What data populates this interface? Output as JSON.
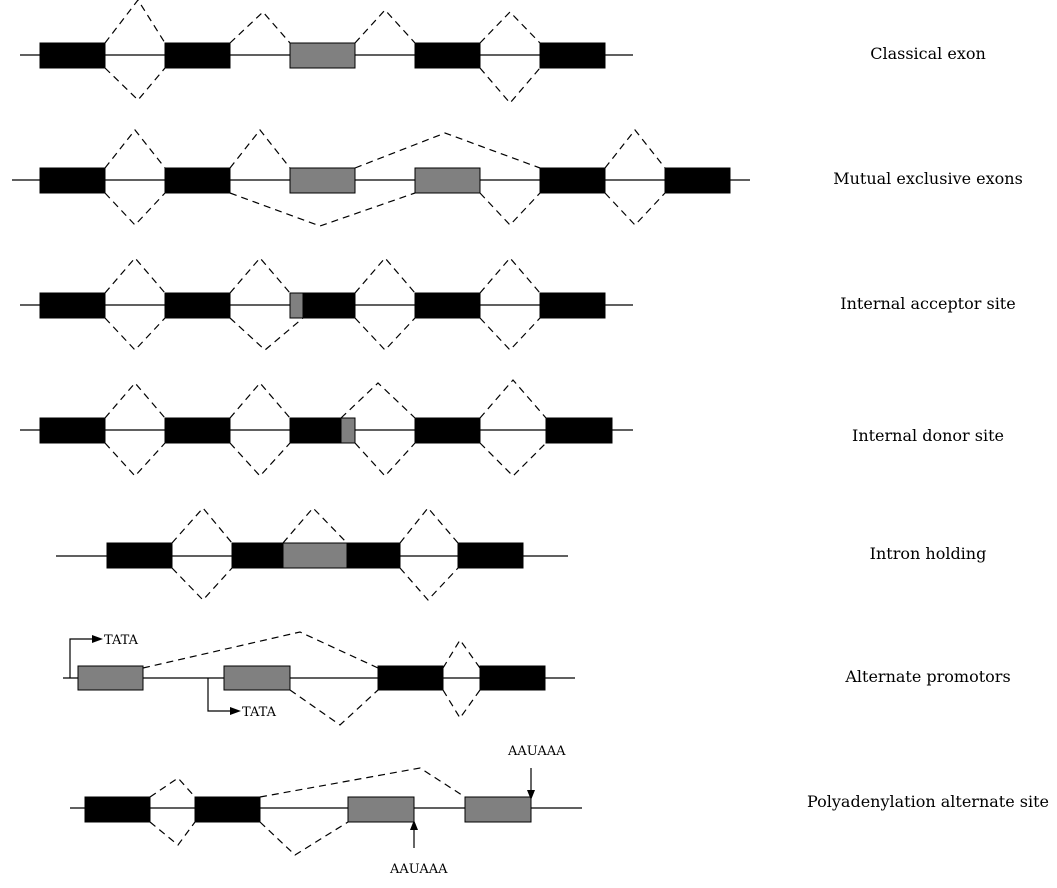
{
  "colors": {
    "constitutive_exon": "#000000",
    "alternative_region": "#808080",
    "line": "#000000"
  },
  "rows": [
    {
      "id": "classical",
      "label": "Classical exon"
    },
    {
      "id": "mutual",
      "label": "Mutual exclusive exons"
    },
    {
      "id": "acceptor",
      "label": "Internal acceptor site"
    },
    {
      "id": "donor",
      "label": "Internal donor site"
    },
    {
      "id": "intron",
      "label": "Intron holding"
    },
    {
      "id": "promoters",
      "label": "Alternate promotors"
    },
    {
      "id": "polyA",
      "label": "Polyadenylation alternate site"
    }
  ],
  "annotations": {
    "tata_1": "TATA",
    "tata_2": "TATA",
    "aauaaa_top": "AAUAAA",
    "aauaaa_bottom": "AAUAAA"
  }
}
